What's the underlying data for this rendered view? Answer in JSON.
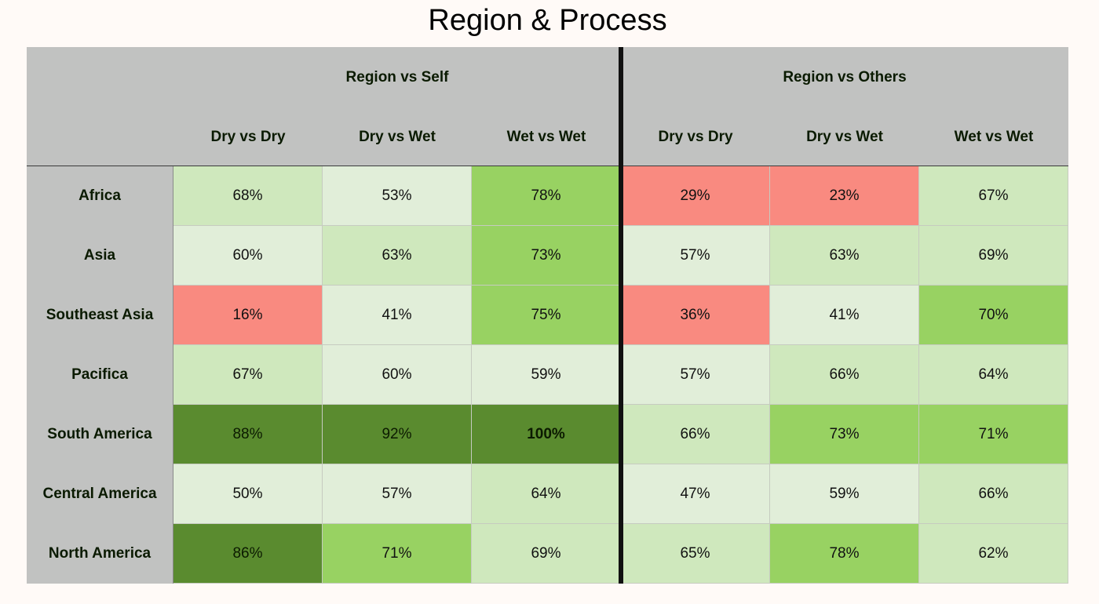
{
  "chart_data": {
    "type": "heatmap",
    "title": "Region & Process",
    "groups": [
      {
        "label": "Region vs Self",
        "columns": [
          "Dry vs Dry",
          "Dry vs Wet",
          "Wet vs Wet"
        ]
      },
      {
        "label": "Region vs Others",
        "columns": [
          "Dry vs Dry",
          "Dry vs Wet",
          "Wet vs Wet"
        ]
      }
    ],
    "rows": [
      "Africa",
      "Asia",
      "Southeast Asia",
      "Pacifica",
      "South America",
      "Central America",
      "North America"
    ],
    "values": [
      [
        68,
        53,
        78,
        29,
        23,
        67
      ],
      [
        60,
        63,
        73,
        57,
        63,
        69
      ],
      [
        16,
        41,
        75,
        36,
        41,
        70
      ],
      [
        67,
        60,
        59,
        57,
        66,
        64
      ],
      [
        88,
        92,
        100,
        66,
        73,
        71
      ],
      [
        50,
        57,
        64,
        47,
        59,
        66
      ],
      [
        86,
        71,
        69,
        65,
        78,
        62
      ]
    ],
    "value_suffix": "%",
    "colors": {
      "low": "#f98a80",
      "mid_light": "#e1eed9",
      "mid": "#cfe8bd",
      "high": "#98d262",
      "top": "#5a8b2f",
      "header_bg": "#c1c2c1",
      "page_bg": "#fffaf7"
    }
  }
}
